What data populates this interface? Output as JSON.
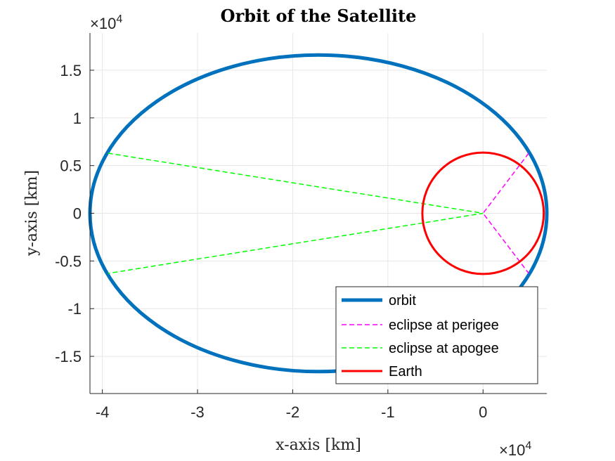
{
  "chart_data": {
    "type": "line",
    "title": "Orbit of the Satellite",
    "xlabel": "x-axis [km]",
    "ylabel": "y-axis [km]",
    "x_exponent_base": "×10",
    "x_exponent_power": "4",
    "y_exponent_base": "×10",
    "y_exponent_power": "4",
    "xlim": [
      -41300,
      6700
    ],
    "ylim": [
      -18900,
      18900
    ],
    "xticks": [
      -40000,
      -30000,
      -20000,
      -10000,
      0
    ],
    "xtick_labels": [
      "-4",
      "-3",
      "-2",
      "-1",
      "0"
    ],
    "yticks": [
      -15000,
      -10000,
      -5000,
      0,
      5000,
      10000,
      15000
    ],
    "ytick_labels": [
      "-1.5",
      "-1",
      "-0.5",
      "0",
      "0.5",
      "1",
      "1.5"
    ],
    "grid": true,
    "legend_location": "bottom-right",
    "orbit": {
      "center": [
        -17300,
        0
      ],
      "semi_major_axis": 24000,
      "semi_minor_axis": 16600
    },
    "earth": {
      "center": [
        0,
        0
      ],
      "radius": 6378
    },
    "eclipse_perigee": {
      "points": [
        [
          4800,
          6300
        ],
        [
          0,
          0
        ],
        [
          4800,
          -6300
        ]
      ]
    },
    "eclipse_apogee": {
      "points": [
        [
          -39400,
          6300
        ],
        [
          0,
          0
        ],
        [
          -39400,
          -6300
        ]
      ]
    },
    "series": [
      {
        "name": "orbit",
        "color": "#0072bd",
        "style": "solid"
      },
      {
        "name": "eclipse at perigee",
        "color": "#ff00ff",
        "style": "dashed"
      },
      {
        "name": "eclipse at apogee",
        "color": "#00ff00",
        "style": "dashed"
      },
      {
        "name": "Earth",
        "color": "#ff0000",
        "style": "solid"
      }
    ]
  }
}
